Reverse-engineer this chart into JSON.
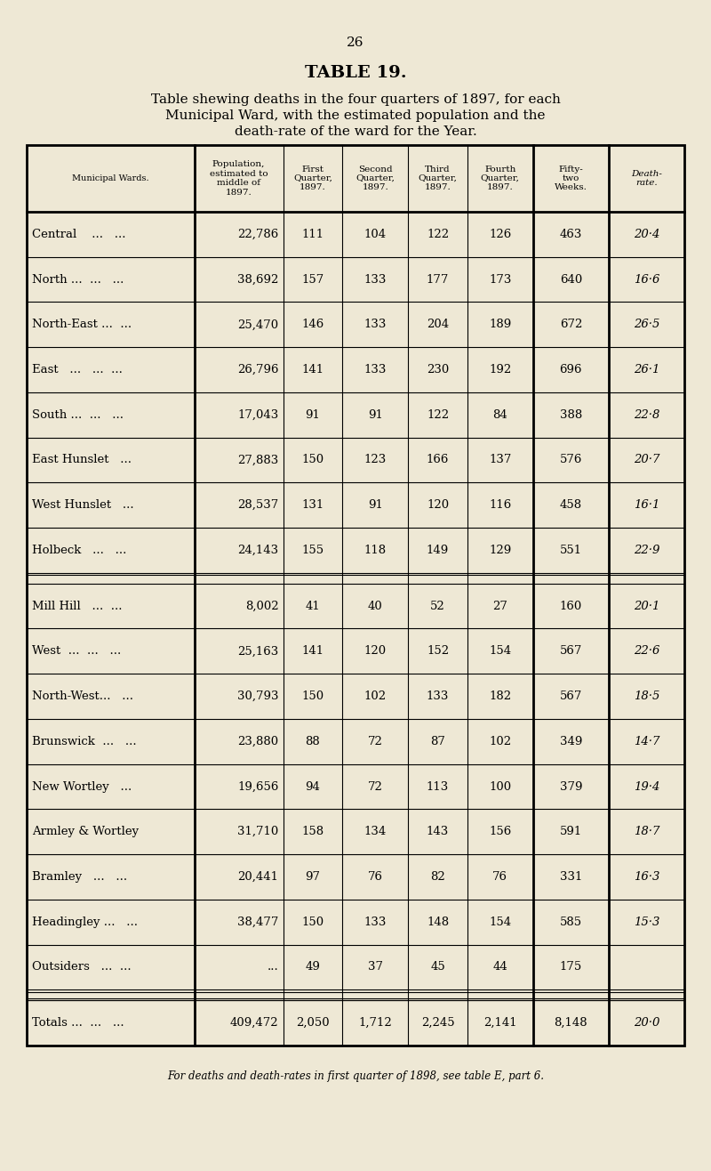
{
  "page_number": "26",
  "title": "TABLE 19.",
  "subtitle_lines": [
    "Table shewing deaths in the four quarters of 1897, for each",
    "Municipal Ward, with the estimated population and the",
    "death-rate of the ward for the Year."
  ],
  "footer": "For deaths and death-rates in first quarter of 1898, see table E, part 6.",
  "bg_color": "#eee8d5",
  "col_headers": [
    "Municipal Wards.",
    "Population,\nestimated to\nmiddle of\n1897.",
    "First\nQuarter,\n1897.",
    "Second\nQuarter,\n1897.",
    "Third\nQuarter,\n1897.",
    "Fourth\nQuarter,\n1897.",
    "Fifty-\ntwo\nWeeks.",
    "Death-\nrate."
  ],
  "rows": [
    [
      "Central    ...   ...",
      "22,786",
      "111",
      "104",
      "122",
      "126",
      "463",
      "20·4"
    ],
    [
      "North ...  ...   ...",
      "38,692",
      "157",
      "133",
      "177",
      "173",
      "640",
      "16·6"
    ],
    [
      "North-East ...  ...",
      "25,470",
      "146",
      "133",
      "204",
      "189",
      "672",
      "26·5"
    ],
    [
      "East   ...   ...  ...",
      "26,796",
      "141",
      "133",
      "230",
      "192",
      "696",
      "26·1"
    ],
    [
      "South ...  ...   ...",
      "17,043",
      "91",
      "91",
      "122",
      "84",
      "388",
      "22·8"
    ],
    [
      "East Hunslet   ...",
      "27,883",
      "150",
      "123",
      "166",
      "137",
      "576",
      "20·7"
    ],
    [
      "West Hunslet   ...",
      "28,537",
      "131",
      "91",
      "120",
      "116",
      "458",
      "16·1"
    ],
    [
      "Holbeck   ...   ...",
      "24,143",
      "155",
      "118",
      "149",
      "129",
      "551",
      "22·9"
    ],
    [
      "Mill Hill   ...  ...",
      "8,002",
      "41",
      "40",
      "52",
      "27",
      "160",
      "20·1"
    ],
    [
      "West  ...  ...   ...",
      "25,163",
      "141",
      "120",
      "152",
      "154",
      "567",
      "22·6"
    ],
    [
      "North-West...   ...",
      "30,793",
      "150",
      "102",
      "133",
      "182",
      "567",
      "18·5"
    ],
    [
      "Brunswick  ...   ...",
      "23,880",
      "88",
      "72",
      "87",
      "102",
      "349",
      "14·7"
    ],
    [
      "New Wortley   ...",
      "19,656",
      "94",
      "72",
      "113",
      "100",
      "379",
      "19·4"
    ],
    [
      "Armley & Wortley",
      "31,710",
      "158",
      "134",
      "143",
      "156",
      "591",
      "18·7"
    ],
    [
      "Bramley   ...   ...",
      "20,441",
      "97",
      "76",
      "82",
      "76",
      "331",
      "16·3"
    ],
    [
      "Headingley ...   ...",
      "38,477",
      "150",
      "133",
      "148",
      "154",
      "585",
      "15·3"
    ],
    [
      "Outsiders   ...  ...",
      "...",
      "49",
      "37",
      "45",
      "44",
      "175",
      ""
    ],
    [
      "Totals ...  ...   ...",
      "409,472",
      "2,050",
      "1,712",
      "2,245",
      "2,141",
      "8,148",
      "20·0"
    ]
  ]
}
